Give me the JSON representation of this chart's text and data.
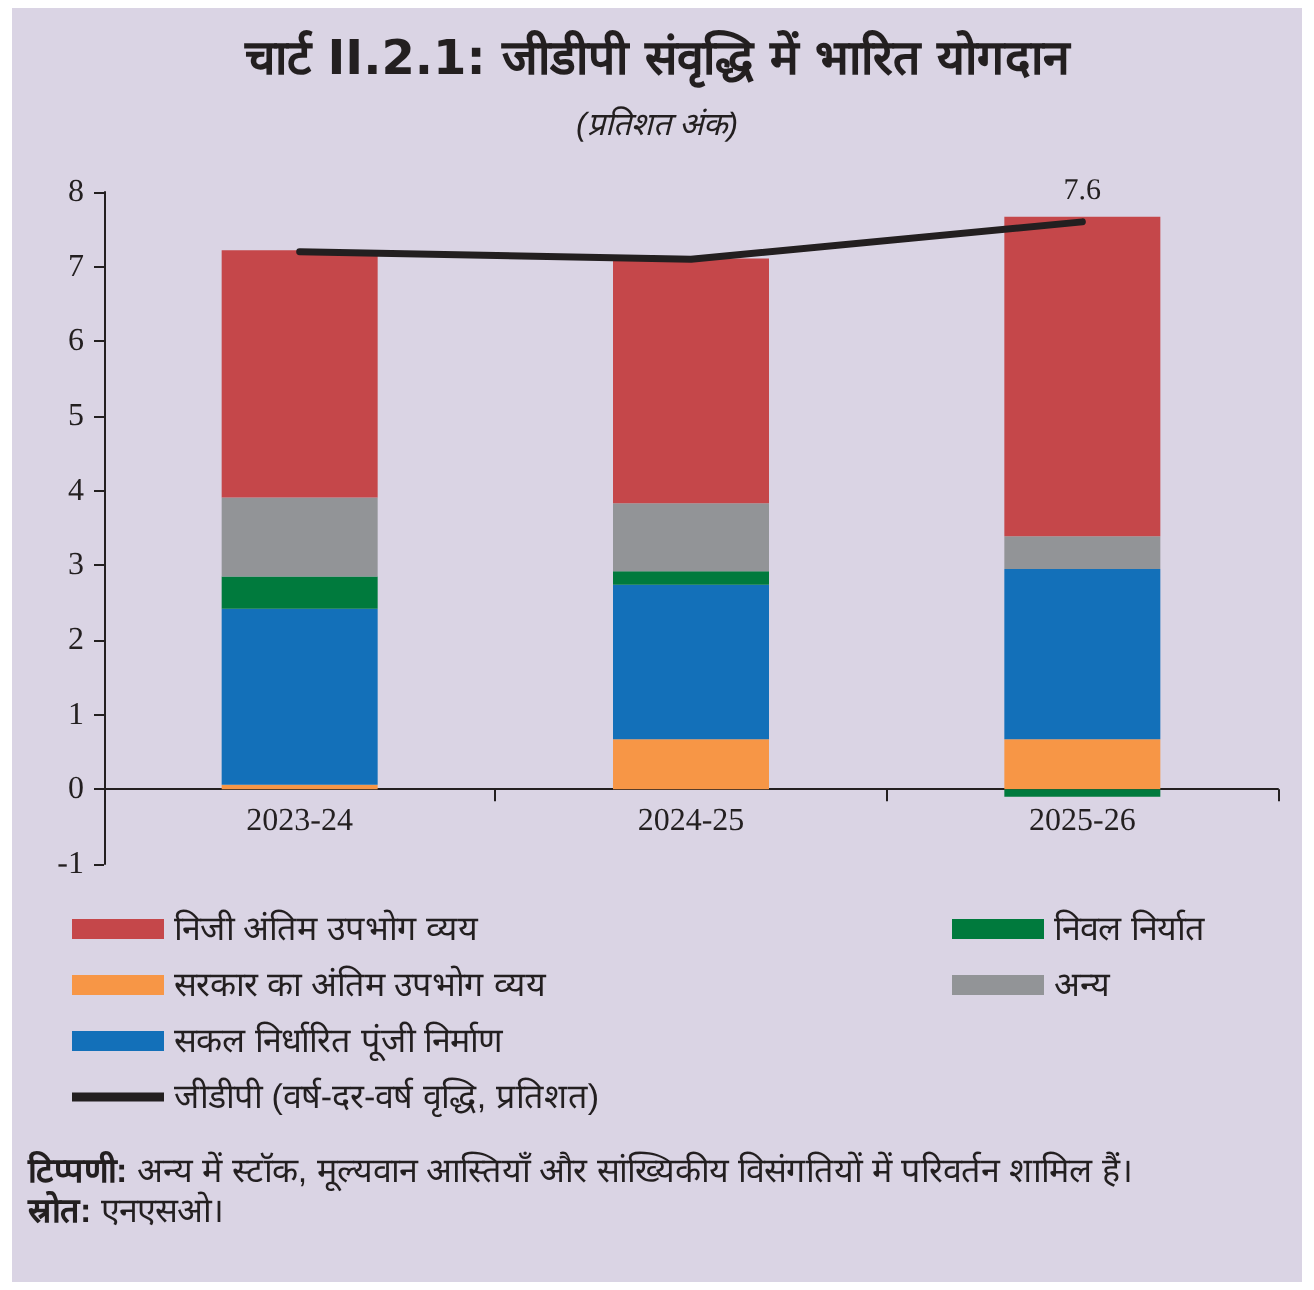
{
  "chart_data": {
    "type": "bar",
    "title": "चार्ट II.2.1: जीडीपी संवृद्धि में भारित योगदान",
    "subtitle": "(प्रतिशत अंक)",
    "categories": [
      "2023-24",
      "2024-25",
      "2025-26"
    ],
    "stacked": true,
    "series": [
      {
        "name": "सरकार का अंतिम उपभोग व्यय",
        "color": "#f79646",
        "values": [
          0.06,
          0.67,
          0.67
        ]
      },
      {
        "name": "सकल निर्धारित पूंजी निर्माण",
        "color": "#1370b9",
        "values": [
          2.36,
          2.07,
          2.28
        ]
      },
      {
        "name": "निवल निर्यात",
        "color": "#007a3d",
        "values": [
          0.43,
          0.18,
          -0.1
        ]
      },
      {
        "name": "अन्य",
        "color": "#929497",
        "values": [
          1.06,
          0.91,
          0.44
        ]
      },
      {
        "name": "निजी अंतिम उपभोग व्यय",
        "color": "#c5474a",
        "values": [
          3.31,
          3.28,
          4.28
        ]
      },
      {
        "name": "जीडीपी (वर्ष-दर-वर्ष वृद्धि, प्रतिशत)",
        "type": "line",
        "color": "#231f20",
        "values": [
          7.2,
          7.1,
          7.6
        ],
        "value_labels": [
          null,
          null,
          "7.6"
        ]
      }
    ],
    "ylim": [
      -1,
      8
    ],
    "yticks": [
      -1,
      0,
      1,
      2,
      3,
      4,
      5,
      6,
      7,
      8
    ],
    "grid": false,
    "legend": "bottom",
    "marker": "none",
    "annotations": [
      "टिप्पणी: अन्य में स्टॉक, मूल्यवान आस्तियाँ और सांख्यिकीय विसंगतियों में परिवर्तन शामिल हैं।",
      "स्रोत: एनएसओ।"
    ]
  }
}
